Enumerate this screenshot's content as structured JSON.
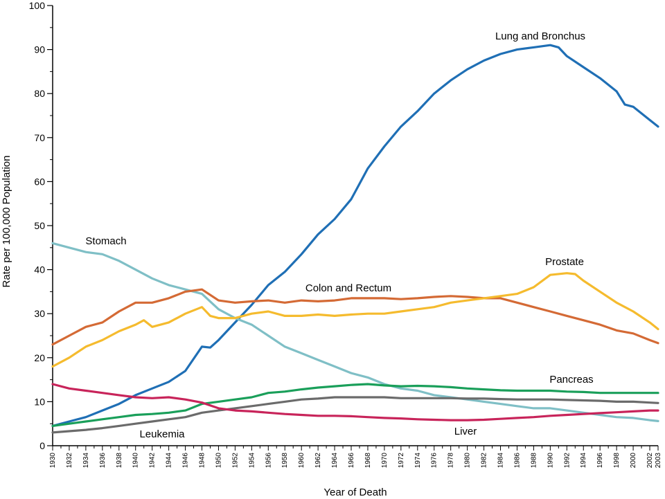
{
  "chart_data": {
    "type": "line",
    "title": "",
    "xlabel": "Year of Death",
    "ylabel": "Rate per 100,000 Population",
    "xlim": [
      1930,
      2003
    ],
    "ylim": [
      0,
      100
    ],
    "y_ticks": [
      0,
      10,
      20,
      30,
      40,
      50,
      60,
      70,
      80,
      90,
      100
    ],
    "x_ticks": [
      1930,
      1932,
      1934,
      1936,
      1938,
      1940,
      1942,
      1944,
      1946,
      1948,
      1950,
      1952,
      1954,
      1956,
      1958,
      1960,
      1962,
      1964,
      1966,
      1968,
      1970,
      1972,
      1974,
      1976,
      1978,
      1980,
      1982,
      1984,
      1986,
      1988,
      1990,
      1992,
      1994,
      1996,
      1998,
      2000,
      2002,
      2003
    ],
    "grid": false,
    "legend": "inline labels",
    "series": [
      {
        "name": "Lung and Bronchus",
        "color": "#1f6fb5",
        "points": [
          [
            1930,
            4.5
          ],
          [
            1932,
            5.5
          ],
          [
            1934,
            6.5
          ],
          [
            1936,
            8
          ],
          [
            1938,
            9.5
          ],
          [
            1940,
            11.5
          ],
          [
            1942,
            13
          ],
          [
            1944,
            14.5
          ],
          [
            1946,
            17
          ],
          [
            1948,
            22.5
          ],
          [
            1949,
            22.3
          ],
          [
            1950,
            24
          ],
          [
            1952,
            28
          ],
          [
            1954,
            32
          ],
          [
            1956,
            36.5
          ],
          [
            1958,
            39.5
          ],
          [
            1960,
            43.5
          ],
          [
            1962,
            48
          ],
          [
            1964,
            51.5
          ],
          [
            1966,
            56
          ],
          [
            1968,
            63
          ],
          [
            1970,
            68
          ],
          [
            1972,
            72.5
          ],
          [
            1974,
            76
          ],
          [
            1976,
            80
          ],
          [
            1978,
            83
          ],
          [
            1980,
            85.5
          ],
          [
            1982,
            87.5
          ],
          [
            1984,
            89
          ],
          [
            1986,
            90
          ],
          [
            1988,
            90.5
          ],
          [
            1990,
            91
          ],
          [
            1991,
            90.5
          ],
          [
            1992,
            88.5
          ],
          [
            1994,
            86
          ],
          [
            1996,
            83.5
          ],
          [
            1998,
            80.5
          ],
          [
            1999,
            77.5
          ],
          [
            2000,
            77
          ],
          [
            2002,
            74
          ],
          [
            2003,
            72.5
          ]
        ]
      },
      {
        "name": "Stomach",
        "color": "#7fbfc6",
        "points": [
          [
            1930,
            46
          ],
          [
            1932,
            45
          ],
          [
            1934,
            44
          ],
          [
            1936,
            43.5
          ],
          [
            1938,
            42
          ],
          [
            1940,
            40
          ],
          [
            1942,
            38
          ],
          [
            1944,
            36.5
          ],
          [
            1946,
            35.5
          ],
          [
            1948,
            34.5
          ],
          [
            1950,
            31
          ],
          [
            1952,
            29
          ],
          [
            1954,
            27.5
          ],
          [
            1956,
            25
          ],
          [
            1958,
            22.5
          ],
          [
            1960,
            21
          ],
          [
            1962,
            19.5
          ],
          [
            1964,
            18
          ],
          [
            1966,
            16.5
          ],
          [
            1968,
            15.5
          ],
          [
            1970,
            14
          ],
          [
            1972,
            13
          ],
          [
            1974,
            12.5
          ],
          [
            1976,
            11.5
          ],
          [
            1978,
            11
          ],
          [
            1980,
            10.5
          ],
          [
            1982,
            10
          ],
          [
            1984,
            9.5
          ],
          [
            1986,
            9
          ],
          [
            1988,
            8.5
          ],
          [
            1990,
            8.5
          ],
          [
            1992,
            8
          ],
          [
            1994,
            7.5
          ],
          [
            1996,
            7
          ],
          [
            1998,
            6.5
          ],
          [
            2000,
            6.3
          ],
          [
            2002,
            5.8
          ],
          [
            2003,
            5.6
          ]
        ]
      },
      {
        "name": "Colon and Rectum",
        "color": "#d46a35",
        "points": [
          [
            1930,
            23
          ],
          [
            1932,
            25
          ],
          [
            1934,
            27
          ],
          [
            1936,
            28
          ],
          [
            1938,
            30.5
          ],
          [
            1940,
            32.5
          ],
          [
            1942,
            32.5
          ],
          [
            1944,
            33.5
          ],
          [
            1946,
            35
          ],
          [
            1948,
            35.5
          ],
          [
            1950,
            33
          ],
          [
            1952,
            32.5
          ],
          [
            1954,
            32.8
          ],
          [
            1956,
            33
          ],
          [
            1958,
            32.5
          ],
          [
            1960,
            33
          ],
          [
            1962,
            32.8
          ],
          [
            1964,
            33
          ],
          [
            1966,
            33.5
          ],
          [
            1968,
            33.5
          ],
          [
            1970,
            33.5
          ],
          [
            1972,
            33.3
          ],
          [
            1974,
            33.5
          ],
          [
            1976,
            33.8
          ],
          [
            1978,
            34
          ],
          [
            1980,
            33.8
          ],
          [
            1982,
            33.5
          ],
          [
            1984,
            33.5
          ],
          [
            1986,
            32.5
          ],
          [
            1988,
            31.5
          ],
          [
            1990,
            30.5
          ],
          [
            1992,
            29.5
          ],
          [
            1994,
            28.5
          ],
          [
            1996,
            27.5
          ],
          [
            1998,
            26.2
          ],
          [
            2000,
            25.5
          ],
          [
            2002,
            24
          ],
          [
            2003,
            23.3
          ]
        ]
      },
      {
        "name": "Prostate",
        "color": "#f5bb2e",
        "points": [
          [
            1930,
            18
          ],
          [
            1932,
            20
          ],
          [
            1934,
            22.5
          ],
          [
            1936,
            24
          ],
          [
            1938,
            26
          ],
          [
            1940,
            27.5
          ],
          [
            1941,
            28.5
          ],
          [
            1942,
            27
          ],
          [
            1944,
            28
          ],
          [
            1946,
            30
          ],
          [
            1948,
            31.5
          ],
          [
            1949,
            29.5
          ],
          [
            1950,
            29
          ],
          [
            1952,
            29
          ],
          [
            1954,
            30
          ],
          [
            1956,
            30.5
          ],
          [
            1958,
            29.5
          ],
          [
            1960,
            29.5
          ],
          [
            1962,
            29.8
          ],
          [
            1964,
            29.5
          ],
          [
            1966,
            29.8
          ],
          [
            1968,
            30
          ],
          [
            1970,
            30
          ],
          [
            1972,
            30.5
          ],
          [
            1974,
            31
          ],
          [
            1976,
            31.5
          ],
          [
            1978,
            32.5
          ],
          [
            1980,
            33
          ],
          [
            1982,
            33.5
          ],
          [
            1984,
            34
          ],
          [
            1986,
            34.5
          ],
          [
            1988,
            36
          ],
          [
            1990,
            38.8
          ],
          [
            1992,
            39.2
          ],
          [
            1993,
            39
          ],
          [
            1994,
            37.5
          ],
          [
            1996,
            35
          ],
          [
            1998,
            32.5
          ],
          [
            2000,
            30.5
          ],
          [
            2002,
            28
          ],
          [
            2003,
            26.5
          ]
        ]
      },
      {
        "name": "Pancreas",
        "color": "#1a9f5a",
        "points": [
          [
            1930,
            4.5
          ],
          [
            1932,
            5
          ],
          [
            1934,
            5.5
          ],
          [
            1936,
            6
          ],
          [
            1938,
            6.5
          ],
          [
            1940,
            7
          ],
          [
            1942,
            7.2
          ],
          [
            1944,
            7.5
          ],
          [
            1946,
            8
          ],
          [
            1948,
            9.5
          ],
          [
            1950,
            10
          ],
          [
            1952,
            10.5
          ],
          [
            1954,
            11
          ],
          [
            1956,
            12
          ],
          [
            1958,
            12.3
          ],
          [
            1960,
            12.8
          ],
          [
            1962,
            13.2
          ],
          [
            1964,
            13.5
          ],
          [
            1966,
            13.8
          ],
          [
            1968,
            14
          ],
          [
            1970,
            13.7
          ],
          [
            1972,
            13.5
          ],
          [
            1974,
            13.6
          ],
          [
            1976,
            13.5
          ],
          [
            1978,
            13.3
          ],
          [
            1980,
            13
          ],
          [
            1982,
            12.8
          ],
          [
            1984,
            12.6
          ],
          [
            1986,
            12.5
          ],
          [
            1988,
            12.5
          ],
          [
            1990,
            12.5
          ],
          [
            1992,
            12.3
          ],
          [
            1994,
            12.2
          ],
          [
            1996,
            12
          ],
          [
            1998,
            12
          ],
          [
            2000,
            12
          ],
          [
            2002,
            12
          ],
          [
            2003,
            12
          ]
        ]
      },
      {
        "name": "Leukemia",
        "color": "#6b6b6b",
        "points": [
          [
            1930,
            3
          ],
          [
            1932,
            3.3
          ],
          [
            1934,
            3.6
          ],
          [
            1936,
            4
          ],
          [
            1938,
            4.5
          ],
          [
            1940,
            5
          ],
          [
            1942,
            5.5
          ],
          [
            1944,
            6
          ],
          [
            1946,
            6.5
          ],
          [
            1948,
            7.5
          ],
          [
            1950,
            8
          ],
          [
            1952,
            8.5
          ],
          [
            1954,
            9
          ],
          [
            1956,
            9.5
          ],
          [
            1958,
            10
          ],
          [
            1960,
            10.5
          ],
          [
            1962,
            10.7
          ],
          [
            1964,
            11
          ],
          [
            1966,
            11
          ],
          [
            1968,
            11
          ],
          [
            1970,
            11
          ],
          [
            1972,
            10.8
          ],
          [
            1974,
            10.8
          ],
          [
            1976,
            10.8
          ],
          [
            1978,
            10.8
          ],
          [
            1980,
            10.7
          ],
          [
            1982,
            10.7
          ],
          [
            1984,
            10.6
          ],
          [
            1986,
            10.5
          ],
          [
            1988,
            10.5
          ],
          [
            1990,
            10.5
          ],
          [
            1992,
            10.4
          ],
          [
            1994,
            10.3
          ],
          [
            1996,
            10.2
          ],
          [
            1998,
            10
          ],
          [
            2000,
            10
          ],
          [
            2002,
            9.8
          ],
          [
            2003,
            9.7
          ]
        ]
      },
      {
        "name": "Liver",
        "color": "#c8245a",
        "points": [
          [
            1930,
            14
          ],
          [
            1932,
            13
          ],
          [
            1934,
            12.5
          ],
          [
            1936,
            12
          ],
          [
            1938,
            11.5
          ],
          [
            1940,
            11
          ],
          [
            1942,
            10.8
          ],
          [
            1944,
            11
          ],
          [
            1946,
            10.5
          ],
          [
            1948,
            9.8
          ],
          [
            1950,
            8.5
          ],
          [
            1952,
            8
          ],
          [
            1954,
            7.8
          ],
          [
            1956,
            7.5
          ],
          [
            1958,
            7.2
          ],
          [
            1960,
            7
          ],
          [
            1962,
            6.8
          ],
          [
            1964,
            6.8
          ],
          [
            1966,
            6.7
          ],
          [
            1968,
            6.5
          ],
          [
            1970,
            6.3
          ],
          [
            1972,
            6.2
          ],
          [
            1974,
            6
          ],
          [
            1976,
            5.9
          ],
          [
            1978,
            5.8
          ],
          [
            1980,
            5.8
          ],
          [
            1982,
            5.9
          ],
          [
            1984,
            6.1
          ],
          [
            1986,
            6.3
          ],
          [
            1988,
            6.5
          ],
          [
            1990,
            6.8
          ],
          [
            1992,
            7
          ],
          [
            1994,
            7.2
          ],
          [
            1996,
            7.4
          ],
          [
            1998,
            7.6
          ],
          [
            2000,
            7.8
          ],
          [
            2002,
            8
          ],
          [
            2003,
            8
          ]
        ]
      }
    ]
  }
}
